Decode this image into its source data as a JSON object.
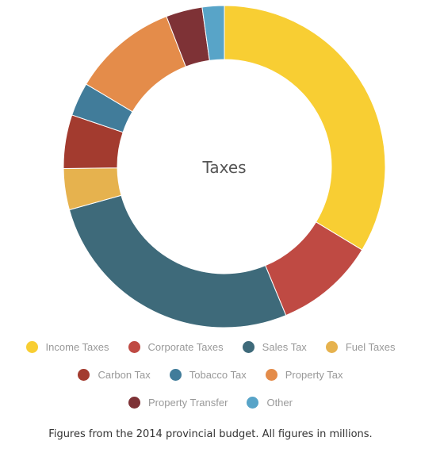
{
  "chart_data": {
    "type": "pie",
    "style": "donut",
    "center_label": "Taxes",
    "slices": [
      {
        "label": "Income Taxes",
        "value": 35.0,
        "color": "#f8ce33"
      },
      {
        "label": "Corporate Taxes",
        "value": 10.5,
        "color": "#bf4a43"
      },
      {
        "label": "Sales Tax",
        "value": 28.0,
        "color": "#3e6a7a"
      },
      {
        "label": "Fuel Taxes",
        "value": 4.3,
        "color": "#e6b24e"
      },
      {
        "label": "Carbon Tax",
        "value": 5.6,
        "color": "#a33b2f"
      },
      {
        "label": "Tobacco Tax",
        "value": 3.5,
        "color": "#417c9a"
      },
      {
        "label": "Property Tax",
        "value": 11.0,
        "color": "#e48c4a"
      },
      {
        "label": "Property Transfer",
        "value": 3.8,
        "color": "#7e3236"
      },
      {
        "label": "Other",
        "value": 2.3,
        "color": "#58a4c8"
      }
    ],
    "legend_position": "bottom"
  },
  "caption": "Figures from the 2014 provincial budget. All figures in millions."
}
